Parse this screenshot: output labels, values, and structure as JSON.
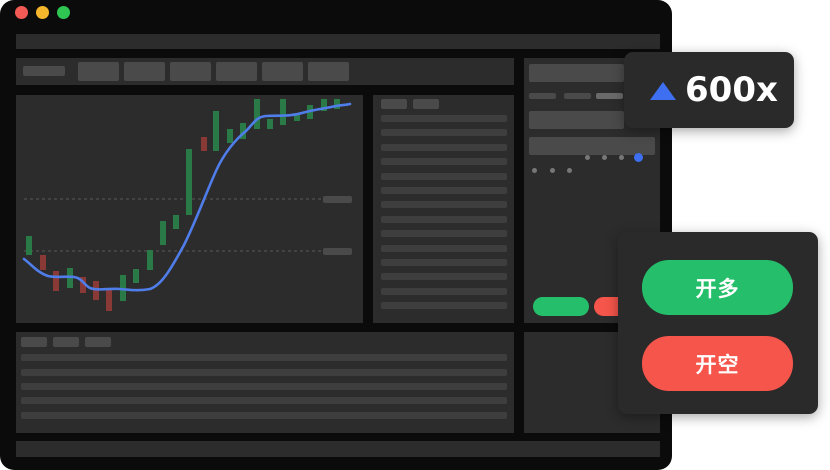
{
  "colors": {
    "window_bg": "#0b0b0b",
    "panel_bg": "#2c2c2c",
    "placeholder": "#4a4a4a",
    "bull_candle": "#2a7a48",
    "bear_candle": "#8a3a36",
    "ma_line": "#4f7dea",
    "long_button": "#25bf6b",
    "short_button": "#f5554a",
    "accent_blue": "#3d6ff0"
  },
  "window_controls": [
    "close-dot",
    "minimize-dot",
    "maximize-dot"
  ],
  "leverage_badge": {
    "icon": "triangle-up-icon",
    "label": "600x"
  },
  "trade_panel": {
    "long_label": "开多",
    "short_label": "开空"
  }
}
